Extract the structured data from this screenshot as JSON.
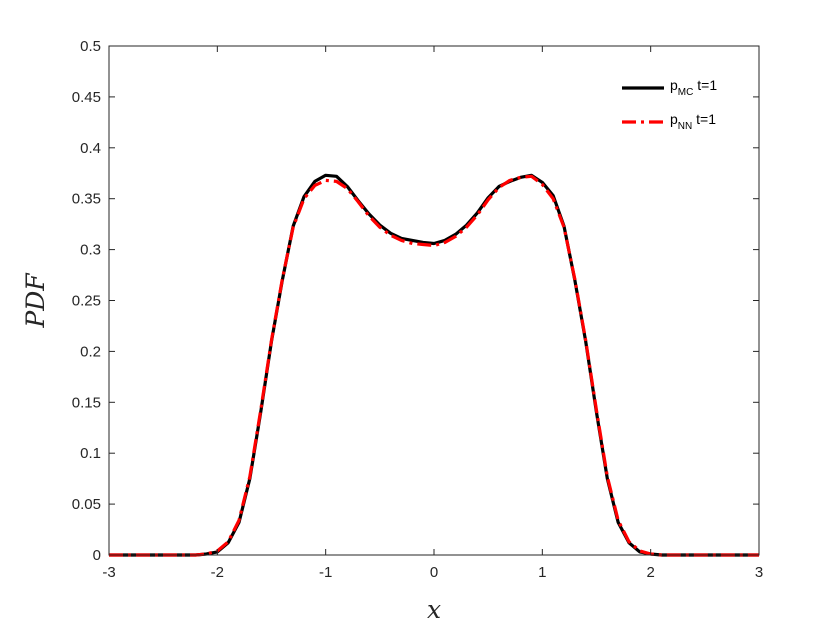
{
  "chart_data": {
    "type": "line",
    "xlabel": "x",
    "ylabel": "PDF",
    "xlim": [
      -3,
      3
    ],
    "ylim": [
      0,
      0.5
    ],
    "x_ticks": [
      -3,
      -2,
      -1,
      0,
      1,
      2,
      3
    ],
    "y_ticks": [
      0,
      0.05,
      0.1,
      0.15,
      0.2,
      0.25,
      0.3,
      0.35,
      0.4,
      0.45,
      0.5
    ],
    "x_tick_labels": [
      "-3",
      "-2",
      "-1",
      "0",
      "1",
      "2",
      "3"
    ],
    "y_tick_labels": [
      "0",
      "0.05",
      "0.1",
      "0.15",
      "0.2",
      "0.25",
      "0.3",
      "0.35",
      "0.4",
      "0.45",
      "0.5"
    ],
    "grid": false,
    "legend_position": "top-right",
    "x": [
      -3,
      -2.2,
      -2.1,
      -2.0,
      -1.9,
      -1.8,
      -1.7,
      -1.6,
      -1.5,
      -1.4,
      -1.3,
      -1.2,
      -1.1,
      -1.0,
      -0.9,
      -0.8,
      -0.7,
      -0.6,
      -0.5,
      -0.4,
      -0.3,
      -0.2,
      -0.1,
      0.0,
      0.1,
      0.2,
      0.3,
      0.4,
      0.5,
      0.6,
      0.7,
      0.8,
      0.9,
      1.0,
      1.1,
      1.2,
      1.3,
      1.4,
      1.5,
      1.6,
      1.7,
      1.8,
      1.9,
      2.0,
      2.1,
      2.2,
      3
    ],
    "series": [
      {
        "name_main": "p",
        "name_sub": "MC",
        "name_suffix": " t=1",
        "color": "#000000",
        "style": "solid",
        "values": [
          0,
          0,
          0.001,
          0.003,
          0.012,
          0.032,
          0.075,
          0.14,
          0.21,
          0.27,
          0.323,
          0.352,
          0.367,
          0.373,
          0.372,
          0.362,
          0.348,
          0.335,
          0.324,
          0.316,
          0.311,
          0.309,
          0.307,
          0.306,
          0.309,
          0.315,
          0.324,
          0.336,
          0.351,
          0.362,
          0.367,
          0.371,
          0.373,
          0.366,
          0.353,
          0.323,
          0.27,
          0.21,
          0.14,
          0.075,
          0.032,
          0.012,
          0.003,
          0.001,
          0,
          0,
          0
        ]
      },
      {
        "name_main": "p",
        "name_sub": "NN",
        "name_suffix": " t=1",
        "color": "#ff0000",
        "style": "dashdot",
        "values": [
          0,
          0,
          0.001,
          0.004,
          0.013,
          0.034,
          0.077,
          0.142,
          0.211,
          0.271,
          0.322,
          0.35,
          0.363,
          0.368,
          0.367,
          0.36,
          0.347,
          0.333,
          0.322,
          0.314,
          0.309,
          0.306,
          0.305,
          0.304,
          0.307,
          0.313,
          0.322,
          0.334,
          0.349,
          0.361,
          0.368,
          0.371,
          0.372,
          0.364,
          0.35,
          0.322,
          0.271,
          0.211,
          0.142,
          0.077,
          0.034,
          0.013,
          0.004,
          0.001,
          0,
          0,
          0
        ]
      }
    ]
  }
}
